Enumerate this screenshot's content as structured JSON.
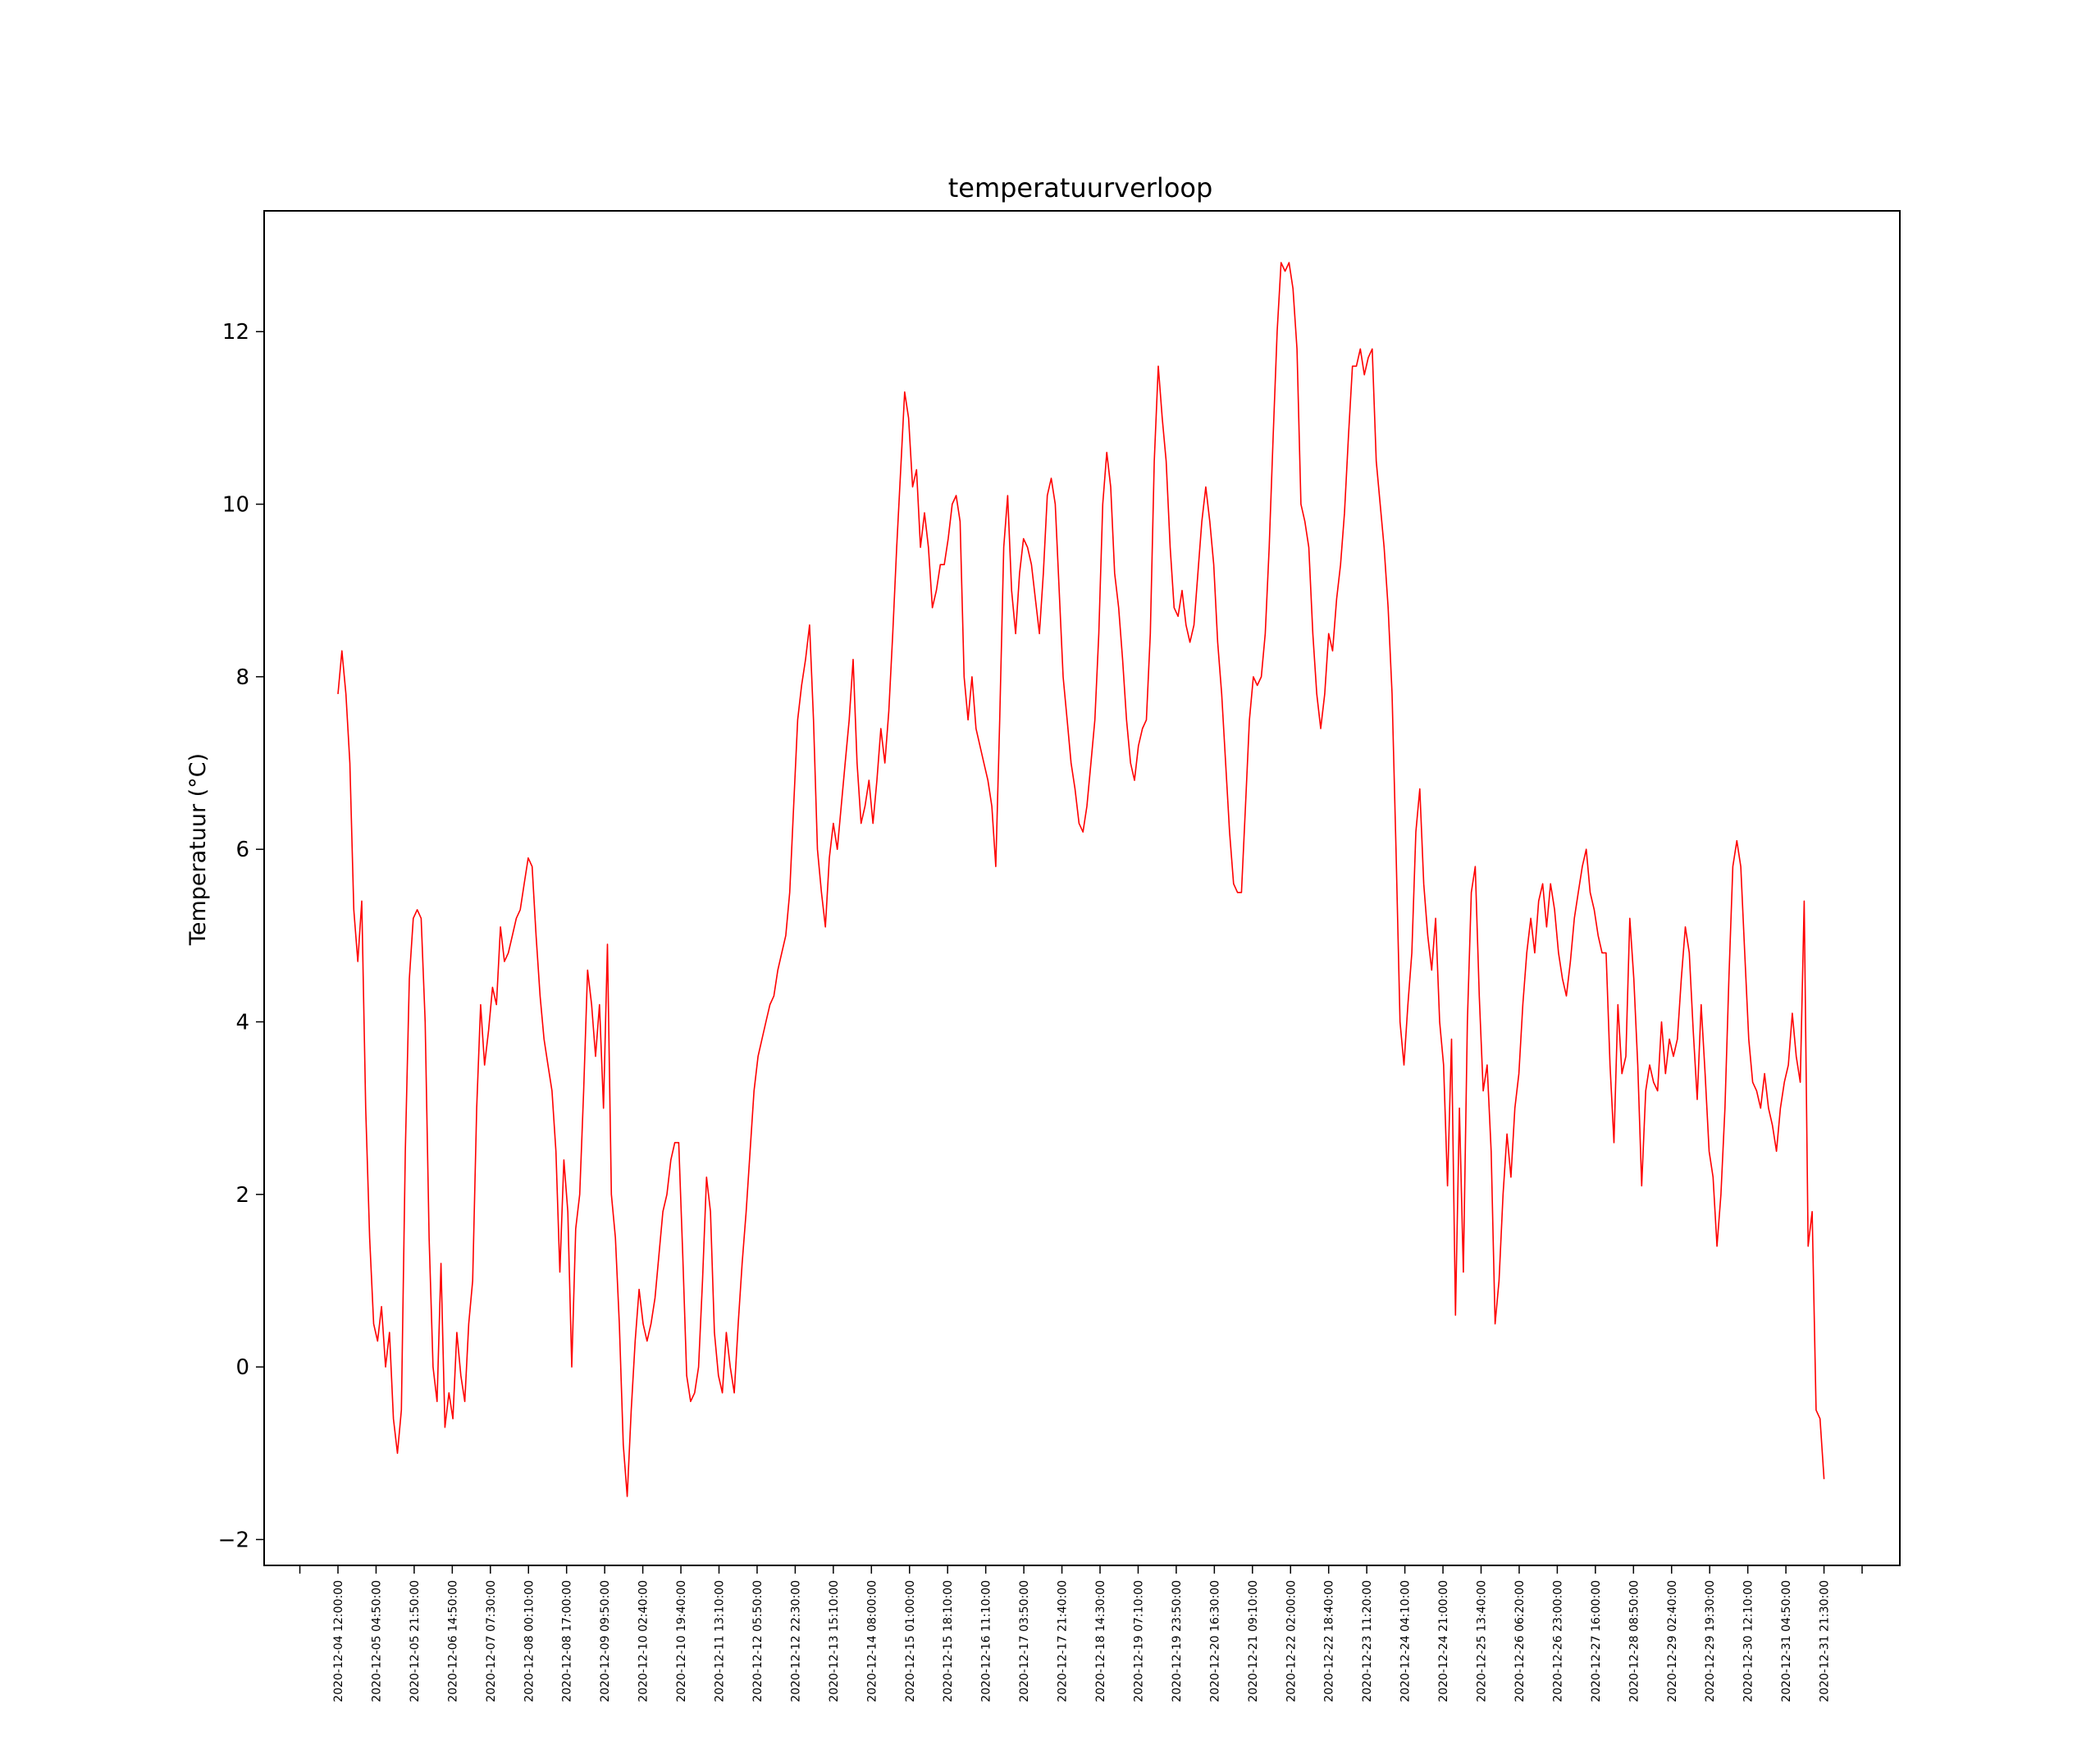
{
  "chart_data": {
    "type": "line",
    "title": "temperatuurverloop",
    "xlabel": "",
    "ylabel": "Temperatuur (°C)",
    "ylim": [
      -2.3,
      13.4
    ],
    "yticks": [
      -2,
      0,
      2,
      4,
      6,
      8,
      10,
      12
    ],
    "grid": false,
    "line_color": "#ff0000",
    "x_start": "2020-12-04 12:00:00",
    "x_end": "2020-12-31 21:30:00",
    "xticks": [
      "2020-12-04 12:00:00",
      "2020-12-05 04:50:00",
      "2020-12-05 21:50:00",
      "2020-12-06 14:50:00",
      "2020-12-07 07:30:00",
      "2020-12-08 00:10:00",
      "2020-12-08 17:00:00",
      "2020-12-09 09:50:00",
      "2020-12-10 02:40:00",
      "2020-12-10 19:40:00",
      "2020-12-11 13:10:00",
      "2020-12-12 05:50:00",
      "2020-12-12 22:30:00",
      "2020-12-13 15:10:00",
      "2020-12-14 08:00:00",
      "2020-12-15 01:00:00",
      "2020-12-15 18:10:00",
      "2020-12-16 11:10:00",
      "2020-12-17 03:50:00",
      "2020-12-17 21:40:00",
      "2020-12-18 14:30:00",
      "2020-12-19 07:10:00",
      "2020-12-19 23:50:00",
      "2020-12-20 16:30:00",
      "2020-12-21 09:10:00",
      "2020-12-22 02:00:00",
      "2020-12-22 18:40:00",
      "2020-12-23 11:20:00",
      "2020-12-24 04:10:00",
      "2020-12-24 21:00:00",
      "2020-12-25 13:40:00",
      "2020-12-26 06:20:00",
      "2020-12-26 23:00:00",
      "2020-12-27 16:00:00",
      "2020-12-28 08:50:00",
      "2020-12-29 02:40:00",
      "2020-12-29 19:30:00",
      "2020-12-30 12:10:00",
      "2020-12-31 04:50:00",
      "2020-12-31 21:30:00"
    ],
    "series": [
      {
        "values": [
          7.8,
          8.3,
          7.8,
          7.0,
          5.3,
          4.7,
          5.4,
          3.0,
          1.5,
          0.5,
          0.3,
          0.7,
          0.0,
          0.4,
          -0.6,
          -1.0,
          -0.5,
          2.5,
          4.5,
          5.2,
          5.3,
          5.2,
          4.0,
          1.5,
          0.0,
          -0.4,
          1.2,
          -0.7,
          -0.3,
          -0.6,
          0.4,
          -0.1,
          -0.4,
          0.5,
          1.0,
          3.0,
          4.2,
          3.5,
          3.9,
          4.4,
          4.2,
          5.1,
          4.7,
          4.8,
          5.0,
          5.2,
          5.3,
          5.6,
          5.9,
          5.8,
          5.0,
          4.3,
          3.8,
          3.5,
          3.2,
          2.5,
          1.1,
          2.4,
          1.8,
          0.0,
          1.6,
          2.0,
          3.2,
          4.6,
          4.2,
          3.6,
          4.2,
          3.0,
          4.9,
          2.0,
          1.5,
          0.5,
          -0.9,
          -1.5,
          -0.5,
          0.3,
          0.9,
          0.5,
          0.3,
          0.5,
          0.8,
          1.3,
          1.8,
          2.0,
          2.4,
          2.6,
          2.6,
          1.3,
          -0.1,
          -0.4,
          -0.3,
          0.0,
          1.0,
          2.2,
          1.8,
          0.4,
          -0.1,
          -0.3,
          0.4,
          0.0,
          -0.3,
          0.5,
          1.2,
          1.8,
          2.5,
          3.2,
          3.6,
          3.8,
          4.0,
          4.2,
          4.3,
          4.6,
          4.8,
          5.0,
          5.5,
          6.5,
          7.5,
          7.9,
          8.2,
          8.6,
          7.5,
          6.0,
          5.5,
          5.1,
          5.9,
          6.3,
          6.0,
          6.5,
          7.0,
          7.5,
          8.2,
          7.0,
          6.3,
          6.5,
          6.8,
          6.3,
          6.8,
          7.4,
          7.0,
          7.6,
          8.5,
          9.5,
          10.4,
          11.3,
          11.0,
          10.2,
          10.4,
          9.5,
          9.9,
          9.5,
          8.8,
          9.0,
          9.3,
          9.3,
          9.6,
          10.0,
          10.1,
          9.8,
          8.0,
          7.5,
          8.0,
          7.4,
          7.2,
          7.0,
          6.8,
          6.5,
          5.8,
          7.5,
          9.5,
          10.1,
          9.0,
          8.5,
          9.2,
          9.6,
          9.5,
          9.3,
          8.9,
          8.5,
          9.2,
          10.1,
          10.3,
          10.0,
          9.0,
          8.0,
          7.5,
          7.0,
          6.7,
          6.3,
          6.2,
          6.5,
          7.0,
          7.5,
          8.5,
          10.0,
          10.6,
          10.2,
          9.2,
          8.8,
          8.2,
          7.5,
          7.0,
          6.8,
          7.2,
          7.4,
          7.5,
          8.5,
          10.5,
          11.6,
          11.0,
          10.5,
          9.5,
          8.8,
          8.7,
          9.0,
          8.6,
          8.4,
          8.6,
          9.2,
          9.8,
          10.2,
          9.8,
          9.3,
          8.4,
          7.8,
          7.0,
          6.2,
          5.6,
          5.5,
          5.5,
          6.5,
          7.5,
          8.0,
          7.9,
          8.0,
          8.5,
          9.5,
          10.8,
          12.0,
          12.8,
          12.7,
          12.8,
          12.5,
          11.8,
          10.0,
          9.8,
          9.5,
          8.5,
          7.8,
          7.4,
          7.8,
          8.5,
          8.3,
          8.9,
          9.3,
          9.9,
          10.8,
          11.6,
          11.6,
          11.8,
          11.5,
          11.7,
          11.8,
          10.5,
          10.0,
          9.5,
          8.8,
          7.8,
          6.0,
          4.0,
          3.5,
          4.2,
          4.8,
          6.2,
          6.7,
          5.6,
          5.0,
          4.6,
          5.2,
          4.0,
          3.5,
          2.1,
          3.8,
          0.6,
          3.0,
          1.1,
          4.0,
          5.5,
          5.8,
          4.3,
          3.2,
          3.5,
          2.5,
          0.5,
          1.0,
          2.0,
          2.7,
          2.2,
          3.0,
          3.4,
          4.2,
          4.8,
          5.2,
          4.8,
          5.4,
          5.6,
          5.1,
          5.6,
          5.3,
          4.8,
          4.5,
          4.3,
          4.7,
          5.2,
          5.5,
          5.8,
          6.0,
          5.5,
          5.3,
          5.0,
          4.8,
          4.8,
          3.5,
          2.6,
          4.2,
          3.4,
          3.6,
          5.2,
          4.5,
          3.5,
          2.1,
          3.2,
          3.5,
          3.3,
          3.2,
          4.0,
          3.4,
          3.8,
          3.6,
          3.8,
          4.5,
          5.1,
          4.8,
          3.9,
          3.1,
          4.2,
          3.4,
          2.5,
          2.2,
          1.4,
          2.0,
          3.0,
          4.5,
          5.8,
          6.1,
          5.8,
          4.8,
          3.8,
          3.3,
          3.2,
          3.0,
          3.4,
          3.0,
          2.8,
          2.5,
          3.0,
          3.3,
          3.5,
          4.1,
          3.6,
          3.3,
          5.4,
          1.4,
          1.8,
          -0.5,
          -0.6,
          -1.3
        ]
      }
    ]
  }
}
